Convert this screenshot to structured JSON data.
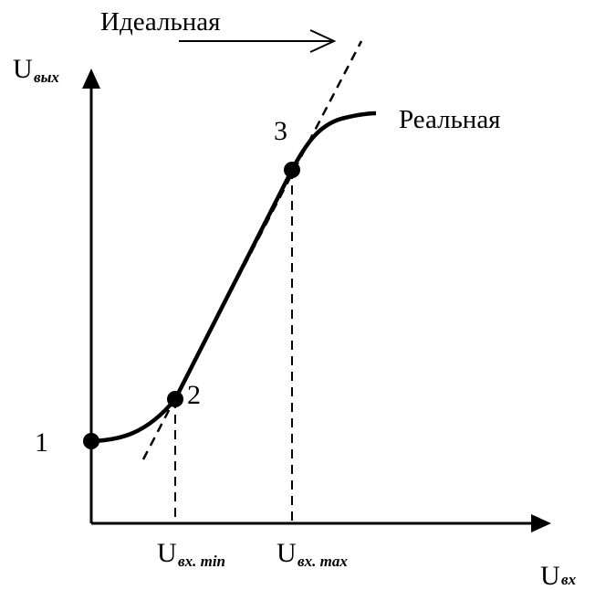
{
  "labels": {
    "ideal": "Идеальная",
    "real": "Реальная"
  },
  "points": [
    "1",
    "2",
    "3"
  ],
  "axes": {
    "y": {
      "main": "U",
      "sub": "вых"
    },
    "x": {
      "main": "U",
      "sub": "вх"
    },
    "x_min": {
      "main": "U",
      "sub": "вх. min"
    },
    "x_max": {
      "main": "U",
      "sub": "вх. max"
    }
  }
}
